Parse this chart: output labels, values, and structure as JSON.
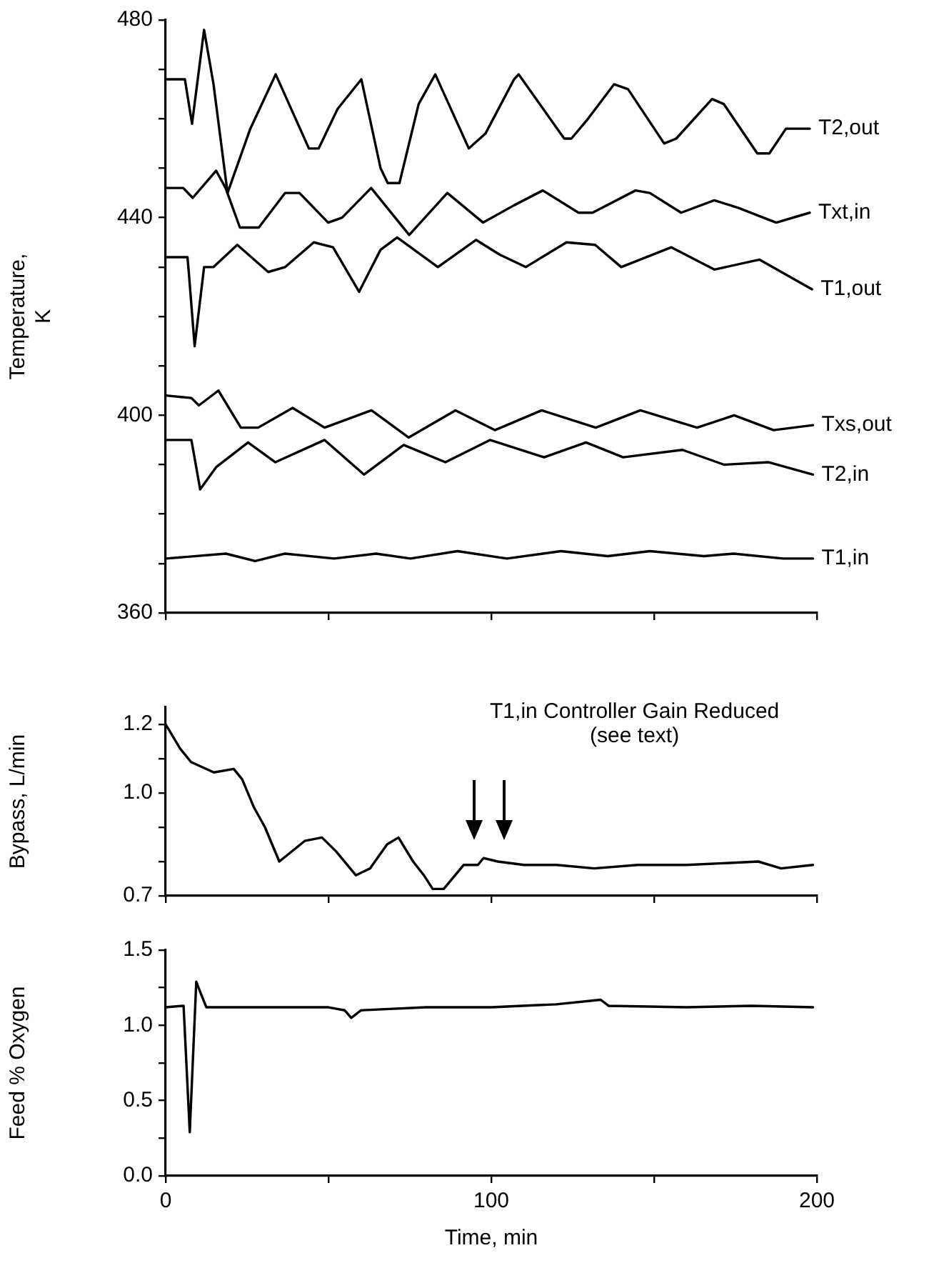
{
  "chart_data": [
    {
      "type": "line",
      "ylabel": "Temperature,\nK",
      "xlim": [
        0,
        200
      ],
      "xticks": [
        {
          "value": 0,
          "label": null
        },
        {
          "value": 50,
          "label": null
        },
        {
          "value": 100,
          "label": null
        },
        {
          "value": 150,
          "label": null
        },
        {
          "value": 200,
          "label": null
        }
      ],
      "ylim": [
        360,
        480
      ],
      "yticks": [
        360,
        {
          "value": 370,
          "label": null
        },
        {
          "value": 380,
          "label": null
        },
        {
          "value": 390,
          "label": null
        },
        400,
        {
          "value": 410,
          "label": null
        },
        {
          "value": 420,
          "label": null
        },
        {
          "value": 430,
          "label": null
        },
        440,
        {
          "value": 450,
          "label": null
        },
        {
          "value": 460,
          "label": null
        },
        {
          "value": 470,
          "label": null
        },
        480
      ],
      "tick_labels": "y",
      "grid": false,
      "legend": false,
      "marker": "none",
      "line_style": "solid",
      "series": [
        {
          "name": "T2,out",
          "color": "#000000",
          "x": [
            0,
            5.9,
            8.1,
            11.8,
            14.7,
            19,
            26,
            33.8,
            44,
            47,
            52.8,
            60.1,
            66,
            68.2,
            71.8,
            77.7,
            82.8,
            93.1,
            98.2,
            107,
            108.4,
            122.4,
            124.6,
            129.7,
            137.7,
            142,
            153.1,
            156.8,
            167.8,
            171.4,
            181.7,
            185.4,
            190.5,
            197.8
          ],
          "values": [
            468,
            468,
            459,
            478,
            467,
            445,
            458,
            469,
            454,
            454,
            462,
            468,
            450,
            447,
            447,
            463,
            469,
            454,
            457,
            468,
            469,
            456,
            456,
            460,
            467,
            466,
            455,
            456,
            464,
            463,
            453,
            453,
            458,
            458
          ]
        },
        {
          "name": "Txt,in",
          "color": "#000000",
          "x": [
            0,
            5.4,
            8.3,
            15.5,
            18.4,
            22.8,
            28.6,
            36.7,
            41.1,
            49.9,
            54.2,
            63.1,
            74.8,
            86.5,
            97.5,
            107,
            115.8,
            126.8,
            131.1,
            144.3,
            148.7,
            158.3,
            168.5,
            175.8,
            187.5,
            197.8
          ],
          "values": [
            446,
            446,
            444,
            449.5,
            446,
            438,
            438,
            445,
            445,
            439,
            440,
            446,
            436.5,
            445,
            439,
            442.5,
            445.5,
            441,
            441,
            445.5,
            445,
            441,
            443.5,
            442,
            439,
            441
          ]
        },
        {
          "name": "T1,out",
          "color": "#000000",
          "x": [
            0,
            6.7,
            7.1,
            8.9,
            11.8,
            14.7,
            22,
            31.5,
            36.7,
            45.5,
            51.4,
            59.4,
            66,
            71.1,
            83.6,
            95.3,
            102.6,
            110.6,
            123.1,
            131.9,
            139.9,
            155.3,
            168.5,
            182.4,
            198.5
          ],
          "values": [
            432,
            432,
            429,
            414,
            430,
            430,
            434.5,
            429,
            430,
            435,
            434,
            425,
            433.5,
            436,
            430,
            435.5,
            432.5,
            430,
            435,
            434.5,
            430,
            434,
            429.5,
            431.5,
            425.5
          ]
        },
        {
          "name": "Txs,out",
          "color": "#000000",
          "x": [
            0,
            7.9,
            10.2,
            16.2,
            23.1,
            28.4,
            39,
            48.8,
            63.2,
            74.6,
            89,
            101.1,
            115.5,
            132.1,
            145.8,
            163.2,
            174.6,
            186.7,
            198.8
          ],
          "values": [
            404,
            403.5,
            402,
            405,
            397.5,
            397.5,
            401.5,
            397.5,
            401,
            395.5,
            401,
            397,
            401,
            397.5,
            401,
            397.5,
            400,
            397,
            398
          ]
        },
        {
          "name": "T2,in",
          "color": "#000000",
          "x": [
            0,
            7.9,
            10.6,
            15.5,
            25.3,
            33.7,
            48.8,
            60.9,
            73.1,
            85.9,
            99.6,
            116.2,
            129.1,
            140.5,
            158.7,
            171.5,
            185.2,
            198.8
          ],
          "values": [
            395,
            395,
            385,
            389.5,
            394.5,
            390.5,
            395,
            388,
            394,
            390.5,
            395,
            391.5,
            394.5,
            391.5,
            393,
            390,
            390.5,
            388
          ]
        },
        {
          "name": "T1,in",
          "color": "#000000",
          "x": [
            0,
            18.5,
            27.5,
            36.6,
            51.7,
            64.6,
            75.2,
            89.6,
            104.8,
            121.4,
            135.8,
            148.7,
            165.3,
            174.4,
            189.6,
            198.8
          ],
          "values": [
            371,
            372,
            370.5,
            372,
            371,
            372,
            371,
            372.5,
            371,
            372.5,
            371.5,
            372.5,
            371.5,
            372,
            371,
            371
          ]
        }
      ]
    },
    {
      "type": "line",
      "ylabel": "Bypass, L/min",
      "xlim": [
        0,
        200
      ],
      "xticks": [
        {
          "value": 0,
          "label": null
        },
        {
          "value": 50,
          "label": null
        },
        {
          "value": 100,
          "label": null
        },
        {
          "value": 150,
          "label": null
        },
        {
          "value": 200,
          "label": null
        }
      ],
      "ylim": [
        0.7,
        1.25
      ],
      "yticks": [
        0.7,
        {
          "value": 0.8,
          "label": null
        },
        {
          "value": 0.9,
          "label": null
        },
        {
          "value": 1,
          "label": "1.0"
        },
        {
          "value": 1.1,
          "label": null
        },
        1.2
      ],
      "tick_labels": "y",
      "grid": false,
      "legend": false,
      "marker": "none",
      "line_style": "solid",
      "annotations": [
        "T1,in Controller Gain Reduced",
        "(see text)"
      ],
      "series": [
        {
          "color": "#000000",
          "x": [
            0,
            4.4,
            7.8,
            14.8,
            20.9,
            23.5,
            27,
            30.5,
            34.9,
            42.7,
            48,
            52.3,
            58.4,
            62.8,
            68,
            71.5,
            76,
            79.3,
            82,
            85.4,
            91.5,
            95.9,
            97.6,
            102,
            110,
            120,
            131.6,
            145,
            160,
            182,
            189,
            198.8
          ],
          "values": [
            1.2,
            1.13,
            1.09,
            1.06,
            1.07,
            1.04,
            0.96,
            0.9,
            0.8,
            0.86,
            0.87,
            0.83,
            0.76,
            0.78,
            0.85,
            0.87,
            0.8,
            0.76,
            0.72,
            0.72,
            0.79,
            0.79,
            0.81,
            0.8,
            0.79,
            0.79,
            0.78,
            0.79,
            0.79,
            0.8,
            0.78,
            0.79
          ]
        }
      ]
    },
    {
      "type": "line",
      "ylabel": "Feed % Oxygen",
      "xlabel": "Time, min",
      "xlim": [
        0,
        200
      ],
      "xticks": [
        0,
        {
          "value": 50,
          "label": null
        },
        100,
        {
          "value": 150,
          "label": null
        },
        200
      ],
      "ylim": [
        0,
        1.5
      ],
      "yticks": [
        {
          "value": 0,
          "label": "0.0"
        },
        {
          "value": 0.25,
          "label": null
        },
        0.5,
        {
          "value": 0.75,
          "label": null
        },
        {
          "value": 1,
          "label": "1.0"
        },
        {
          "value": 1.25,
          "label": null
        },
        1.5
      ],
      "grid": false,
      "legend": false,
      "marker": "none",
      "line_style": "solid",
      "series": [
        {
          "color": "#000000",
          "x": [
            0,
            5.5,
            7.4,
            9.4,
            11,
            12.5,
            30,
            50,
            55,
            57,
            60,
            80,
            100,
            120,
            133.6,
            136,
            160,
            180,
            198.8
          ],
          "values": [
            1.12,
            1.13,
            0.29,
            1.29,
            1.2,
            1.12,
            1.12,
            1.12,
            1.1,
            1.05,
            1.1,
            1.12,
            1.12,
            1.14,
            1.17,
            1.13,
            1.12,
            1.13,
            1.12
          ]
        }
      ]
    }
  ]
}
